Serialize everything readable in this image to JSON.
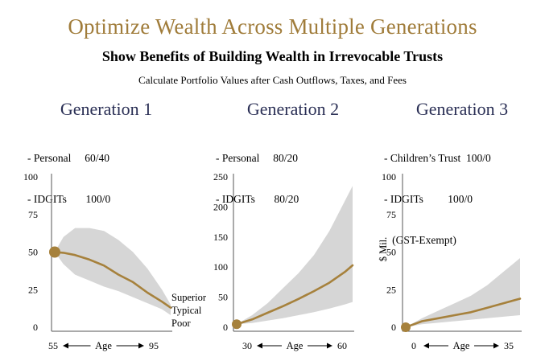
{
  "header": {
    "title": "Optimize Wealth Across Multiple Generations",
    "subtitle": "Show Benefits of Building Wealth in Irrevocable Trusts",
    "subsubtitle": "Calculate Portfolio Values after Cash Outflows, Taxes, and Fees"
  },
  "generations": [
    {
      "title": "Generation 1",
      "lines": [
        "- Personal     60/40",
        "- IDGITs       100/0"
      ]
    },
    {
      "title": "Generation 2",
      "lines": [
        "- Personal     80/20",
        "- IDGITs       80/20"
      ]
    },
    {
      "title": "Generation 3",
      "lines": [
        "- Children’s Trust  100/0",
        "- IDGITs         100/0",
        "   (GST-Exempt)"
      ]
    }
  ],
  "legend": {
    "superior": "Superior",
    "typical": "Typical",
    "poor": "Poor"
  },
  "colors": {
    "band": "#d6d6d6",
    "line": "#a6813c",
    "dot": "#a6813c",
    "title": "#a07c3a",
    "gen_title": "#2a2f55"
  },
  "chart_data": [
    {
      "type": "area",
      "title": "Generation 1",
      "xlabel": "Age",
      "x_tick_labels": [
        "55",
        "95"
      ],
      "xlim": [
        55,
        95
      ],
      "ylim": [
        0,
        100
      ],
      "yticks": [
        0,
        25,
        50,
        75,
        100
      ],
      "ylabel": "",
      "start_point": {
        "x": 55,
        "y": 50
      },
      "series": [
        {
          "name": "Superior",
          "x": [
            55,
            58,
            62,
            67,
            72,
            77,
            82,
            87,
            92,
            95
          ],
          "y": [
            50,
            60,
            66,
            66,
            64,
            58,
            50,
            39,
            25,
            15
          ]
        },
        {
          "name": "Typical",
          "x": [
            55,
            58,
            62,
            67,
            72,
            77,
            82,
            87,
            92,
            95
          ],
          "y": [
            50,
            49.5,
            48,
            45,
            41,
            35,
            30,
            23,
            17,
            13
          ]
        },
        {
          "name": "Poor",
          "x": [
            55,
            58,
            62,
            67,
            72,
            77,
            82,
            87,
            92,
            95
          ],
          "y": [
            50,
            42,
            35,
            31,
            27,
            24,
            20,
            16,
            12,
            8
          ]
        }
      ]
    },
    {
      "type": "area",
      "title": "Generation 2",
      "xlabel": "Age",
      "x_tick_labels": [
        "30",
        "60"
      ],
      "xlim": [
        30,
        60
      ],
      "ylim": [
        0,
        250
      ],
      "yticks": [
        0,
        50,
        100,
        150,
        200,
        250
      ],
      "ylabel": "",
      "start_point": {
        "x": 30,
        "y": 5
      },
      "series": [
        {
          "name": "Superior",
          "x": [
            30,
            34,
            38,
            42,
            46,
            50,
            54,
            58,
            60
          ],
          "y": [
            5,
            20,
            40,
            65,
            90,
            120,
            160,
            210,
            235
          ]
        },
        {
          "name": "Typical",
          "x": [
            30,
            34,
            38,
            42,
            46,
            50,
            54,
            58,
            60
          ],
          "y": [
            5,
            13,
            24,
            35,
            47,
            60,
            74,
            92,
            103
          ]
        },
        {
          "name": "Poor",
          "x": [
            30,
            34,
            38,
            42,
            46,
            50,
            54,
            58,
            60
          ],
          "y": [
            5,
            7,
            11,
            15,
            20,
            25,
            31,
            38,
            42
          ]
        }
      ]
    },
    {
      "type": "area",
      "title": "Generation 3",
      "xlabel": "Age",
      "x_tick_labels": [
        "0",
        "35"
      ],
      "xlim": [
        0,
        35
      ],
      "ylim": [
        0,
        100
      ],
      "yticks": [
        0,
        25,
        50,
        75,
        100
      ],
      "ylabel": "$ Mil.",
      "start_point": {
        "x": 0,
        "y": 0
      },
      "series": [
        {
          "name": "Superior",
          "x": [
            0,
            5,
            10,
            15,
            20,
            25,
            30,
            35
          ],
          "y": [
            0,
            6,
            11,
            16,
            21,
            28,
            37,
            46
          ]
        },
        {
          "name": "Typical",
          "x": [
            0,
            5,
            10,
            15,
            20,
            25,
            30,
            35
          ],
          "y": [
            0,
            4,
            6,
            8,
            10,
            13,
            16,
            19
          ]
        },
        {
          "name": "Poor",
          "x": [
            0,
            5,
            10,
            15,
            20,
            25,
            30,
            35
          ],
          "y": [
            0,
            2,
            3,
            4,
            5,
            6,
            7,
            8
          ]
        }
      ]
    }
  ]
}
